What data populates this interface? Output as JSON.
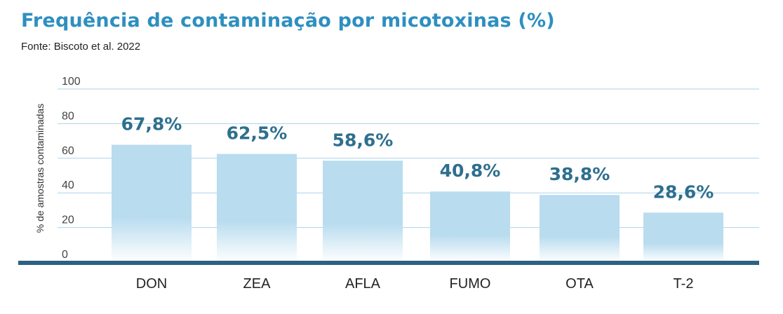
{
  "title": "Frequência de contaminação por micotoxinas (%)",
  "source": "Fonte: Biscoto et al. 2022",
  "colors": {
    "title": "#2e8fc0",
    "data_label": "#2e6f8e",
    "bar_top": "#b9dcef",
    "bar_bottom": "#ffffff",
    "gridline": "#a9d3ea",
    "baseline": "#2c6282"
  },
  "chart_data": {
    "type": "bar",
    "categories": [
      "DON",
      "ZEA",
      "AFLA",
      "FUMO",
      "OTA",
      "T-2"
    ],
    "values": [
      67.8,
      62.5,
      58.6,
      40.8,
      38.8,
      28.6
    ],
    "data_labels": [
      "67,8%",
      "62,5%",
      "58,6%",
      "40,8%",
      "38,8%",
      "28,6%"
    ],
    "ylabel": "% de amostras contaminadas",
    "xlabel": "",
    "ylim": [
      0,
      100
    ],
    "yticks": [
      0,
      20,
      40,
      60,
      80,
      100
    ],
    "grid": true
  }
}
